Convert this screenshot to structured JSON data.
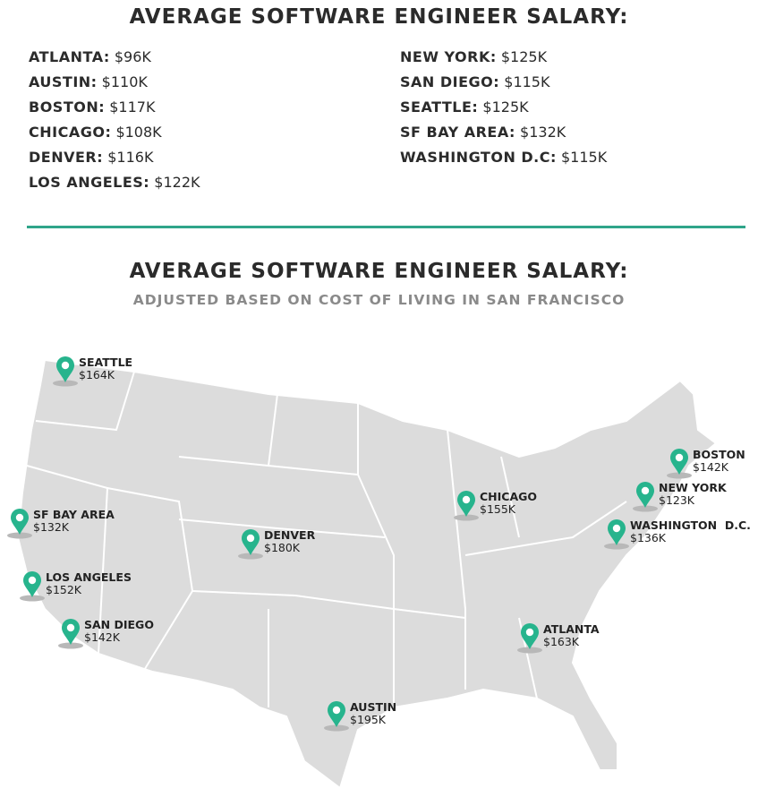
{
  "header": {
    "title": "AVERAGE SOFTWARE ENGINEER SALARY:"
  },
  "salaries": [
    {
      "city": "ATLANTA:",
      "salary": "$96K"
    },
    {
      "city": "AUSTIN:",
      "salary": "$110K"
    },
    {
      "city": "BOSTON:",
      "salary": "$117K"
    },
    {
      "city": "CHICAGO:",
      "salary": "$108K"
    },
    {
      "city": "DENVER:",
      "salary": "$116K"
    },
    {
      "city": "LOS ANGELES:",
      "salary": "$122K"
    },
    {
      "city": "NEW YORK:",
      "salary": "$125K"
    },
    {
      "city": "SAN DIEGO:",
      "salary": "$115K"
    },
    {
      "city": "SEATTLE:",
      "salary": "$125K"
    },
    {
      "city": "SF BAY AREA:",
      "salary": "$132K"
    },
    {
      "city": "WASHINGTON D.C:",
      "salary": "$115K"
    }
  ],
  "adjusted": {
    "title": "AVERAGE SOFTWARE ENGINEER SALARY:",
    "subtitle": "ADJUSTED BASED ON COST OF LIVING IN SAN FRANCISCO",
    "pins": [
      {
        "city": "SEATTLE",
        "salary": "$164K"
      },
      {
        "city": "SF BAY AREA",
        "salary": "$132K"
      },
      {
        "city": "LOS ANGELES",
        "salary": "$152K"
      },
      {
        "city": "SAN DIEGO",
        "salary": "$142K"
      },
      {
        "city": "DENVER",
        "salary": "$180K"
      },
      {
        "city": "AUSTIN",
        "salary": "$195K"
      },
      {
        "city": "CHICAGO",
        "salary": "$155K"
      },
      {
        "city": "ATLANTA",
        "salary": "$163K"
      },
      {
        "city": "WASHINGTON  D.C.",
        "salary": "$136K"
      },
      {
        "city": "NEW YORK",
        "salary": "$123K"
      },
      {
        "city": "BOSTON",
        "salary": "$142K"
      }
    ]
  }
}
